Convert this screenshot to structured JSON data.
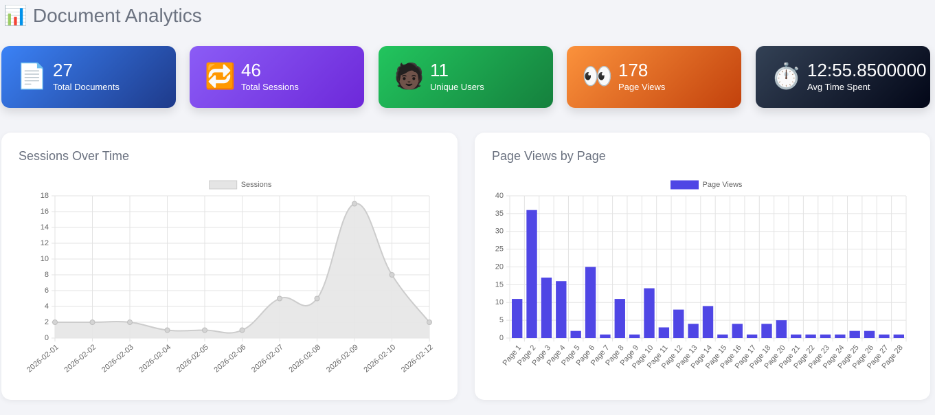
{
  "header": {
    "icon": "📊",
    "title": "Document Analytics"
  },
  "cards": [
    {
      "icon": "📄",
      "value": 27,
      "label": "Total Documents"
    },
    {
      "icon": "🔁",
      "value": 46,
      "label": "Total Sessions"
    },
    {
      "icon": "🧑🏿",
      "value": 11,
      "label": "Unique Users"
    },
    {
      "icon": "👀",
      "value": 178,
      "label": "Page Views"
    },
    {
      "icon": "⏱️",
      "value": "12:55.8500000",
      "label": "Avg Time Spent"
    }
  ],
  "chart_data": [
    {
      "type": "line",
      "title": "Sessions Over Time",
      "x": [
        "2026-02-01",
        "2026-02-02",
        "2026-02-03",
        "2026-02-04",
        "2026-02-05",
        "2026-02-06",
        "2026-02-07",
        "2026-02-08",
        "2026-02-09",
        "2026-02-10",
        "2026-02-12"
      ],
      "series": [
        {
          "name": "Sessions",
          "color": "#cccccc",
          "values": [
            2,
            2,
            2,
            1,
            1,
            1,
            5,
            5,
            17,
            8,
            2
          ]
        }
      ],
      "ylim": [
        0,
        18
      ],
      "yticks": [
        0,
        2,
        4,
        6,
        8,
        10,
        12,
        14,
        16,
        18
      ],
      "grid": true
    },
    {
      "type": "bar",
      "title": "Page Views by Page",
      "categories": [
        "Page 1",
        "Page 2",
        "Page 3",
        "Page 4",
        "Page 5",
        "Page 6",
        "Page 7",
        "Page 8",
        "Page 9",
        "Page 10",
        "Page 11",
        "Page 12",
        "Page 13",
        "Page 14",
        "Page 15",
        "Page 16",
        "Page 17",
        "Page 18",
        "Page 20",
        "Page 21",
        "Page 22",
        "Page 23",
        "Page 24",
        "Page 25",
        "Page 26",
        "Page 27",
        "Page 28"
      ],
      "series": [
        {
          "name": "Page Views",
          "color": "#4f46e5",
          "values": [
            11,
            36,
            17,
            16,
            2,
            20,
            1,
            11,
            1,
            14,
            3,
            8,
            4,
            9,
            1,
            4,
            1,
            4,
            5,
            1,
            1,
            1,
            1,
            2,
            2,
            1,
            1
          ]
        }
      ],
      "ylim": [
        0,
        40
      ],
      "yticks": [
        0,
        5,
        10,
        15,
        20,
        25,
        30,
        35,
        40
      ],
      "grid": true
    }
  ]
}
